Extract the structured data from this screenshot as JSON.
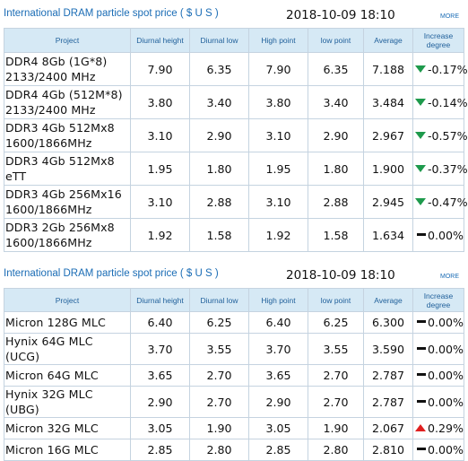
{
  "colors": {
    "up": "#e02020",
    "down": "#1e9a4c",
    "flat": "#111111",
    "header_bg": "#d6e9f5",
    "title": "#1a6cb5"
  },
  "dram": {
    "title": "International DRAM particle spot price ( $ U S )",
    "datetime": "2018-10-09 18:10",
    "more": "MORE",
    "columns": [
      "Project",
      "Diurnal height",
      "Diurnal low",
      "High point",
      "low point",
      "Average",
      "Increase degree"
    ],
    "rows": [
      {
        "project": "DDR4 8Gb (1G*8) 2133/2400 MHz",
        "high": "7.90",
        "low": "6.35",
        "hp": "7.90",
        "lp": "6.35",
        "avg": "7.188",
        "trend_icon": "down-arrow-icon",
        "change": "-0.17%"
      },
      {
        "project": "DDR4 4Gb (512M*8) 2133/2400 MHz",
        "high": "3.80",
        "low": "3.40",
        "hp": "3.80",
        "lp": "3.40",
        "avg": "3.484",
        "trend_icon": "down-arrow-icon",
        "change": "-0.14%"
      },
      {
        "project": "DDR3 4Gb 512Mx8 1600/1866MHz",
        "high": "3.10",
        "low": "2.90",
        "hp": "3.10",
        "lp": "2.90",
        "avg": "2.967",
        "trend_icon": "down-arrow-icon",
        "change": "-0.57%"
      },
      {
        "project": "DDR3 4Gb 512Mx8 eTT",
        "high": "1.95",
        "low": "1.80",
        "hp": "1.95",
        "lp": "1.80",
        "avg": "1.900",
        "trend_icon": "down-arrow-icon",
        "change": "-0.37%"
      },
      {
        "project": "DDR3 4Gb 256Mx16 1600/1866MHz",
        "high": "3.10",
        "low": "2.88",
        "hp": "3.10",
        "lp": "2.88",
        "avg": "2.945",
        "trend_icon": "down-arrow-icon",
        "change": "-0.47%"
      },
      {
        "project": "DDR3 2Gb 256Mx8 1600/1866MHz",
        "high": "1.92",
        "low": "1.58",
        "hp": "1.92",
        "lp": "1.58",
        "avg": "1.634",
        "trend_icon": "flat-dash-icon",
        "change": "0.00%"
      }
    ]
  },
  "flash": {
    "title": "International DRAM particle spot price ( $ U S )",
    "datetime": "2018-10-09 18:10",
    "more": "MORE",
    "columns": [
      "Project",
      "Diurnal height",
      "Diurnal low",
      "High point",
      "low point",
      "Average",
      "Increase degree"
    ],
    "rows": [
      {
        "project": "Micron 128G MLC",
        "high": "6.40",
        "low": "6.25",
        "hp": "6.40",
        "lp": "6.25",
        "avg": "6.300",
        "trend_icon": "flat-dash-icon",
        "change": "0.00%"
      },
      {
        "project": "Hynix 64G MLC (UCG)",
        "high": "3.70",
        "low": "3.55",
        "hp": "3.70",
        "lp": "3.55",
        "avg": "3.590",
        "trend_icon": "flat-dash-icon",
        "change": "0.00%"
      },
      {
        "project": "Micron 64G MLC",
        "high": "3.65",
        "low": "2.70",
        "hp": "3.65",
        "lp": "2.70",
        "avg": "2.787",
        "trend_icon": "flat-dash-icon",
        "change": "0.00%"
      },
      {
        "project": "Hynix 32G MLC (UBG)",
        "high": "2.90",
        "low": "2.70",
        "hp": "2.90",
        "lp": "2.70",
        "avg": "2.787",
        "trend_icon": "flat-dash-icon",
        "change": "0.00%"
      },
      {
        "project": "Micron 32G MLC",
        "high": "3.05",
        "low": "1.90",
        "hp": "3.05",
        "lp": "1.90",
        "avg": "2.067",
        "trend_icon": "up-arrow-icon",
        "change": "0.29%"
      },
      {
        "project": "Micron 16G MLC",
        "high": "2.85",
        "low": "2.80",
        "hp": "2.85",
        "lp": "2.80",
        "avg": "2.810",
        "trend_icon": "flat-dash-icon",
        "change": "0.00%"
      }
    ]
  }
}
